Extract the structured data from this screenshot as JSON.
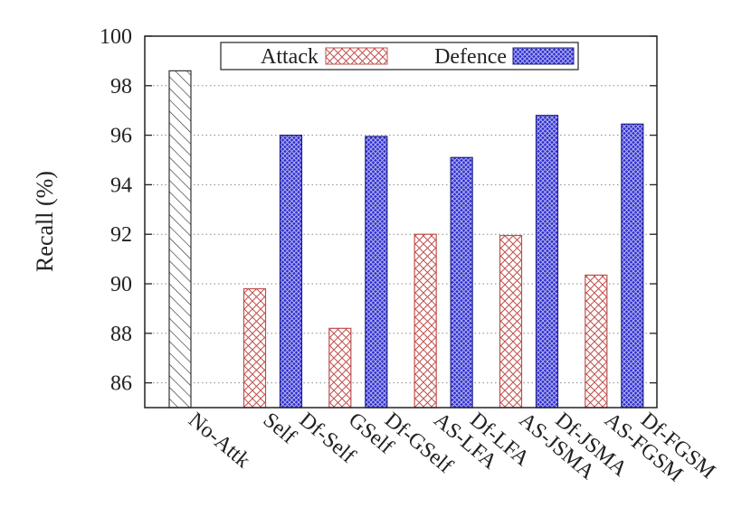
{
  "chart_data": {
    "type": "bar",
    "title": "",
    "xlabel": "",
    "ylabel": "Recall (%)",
    "ylim": [
      85,
      100
    ],
    "yticks": [
      86,
      88,
      90,
      92,
      94,
      96,
      98,
      100
    ],
    "grid": true,
    "legend_position": "top",
    "series": [
      {
        "name": "Attack",
        "key": "attack",
        "color": "#c0504d"
      },
      {
        "name": "Defence",
        "key": "defence",
        "color": "#2f2fc0"
      }
    ],
    "bars": [
      {
        "label": "No-Attk",
        "value": 98.6,
        "series": "baseline",
        "group": 0,
        "slot": 0
      },
      {
        "label": "Self",
        "value": 89.8,
        "series": "attack",
        "group": 1,
        "slot": 0
      },
      {
        "label": "Df-Self",
        "value": 96.0,
        "series": "defence",
        "group": 1,
        "slot": 1
      },
      {
        "label": "GSelf",
        "value": 88.2,
        "series": "attack",
        "group": 2,
        "slot": 0
      },
      {
        "label": "Df-GSelf",
        "value": 95.95,
        "series": "defence",
        "group": 2,
        "slot": 1
      },
      {
        "label": "AS-LFA",
        "value": 92.0,
        "series": "attack",
        "group": 3,
        "slot": 0
      },
      {
        "label": "Df-LFA",
        "value": 95.1,
        "series": "defence",
        "group": 3,
        "slot": 1
      },
      {
        "label": "AS-JSMA",
        "value": 91.95,
        "series": "attack",
        "group": 4,
        "slot": 0
      },
      {
        "label": "Df-JSMA",
        "value": 96.8,
        "series": "defence",
        "group": 4,
        "slot": 1
      },
      {
        "label": "AS-FGSM",
        "value": 90.35,
        "series": "attack",
        "group": 5,
        "slot": 0
      },
      {
        "label": "Df-FGSM",
        "value": 96.45,
        "series": "defence",
        "group": 5,
        "slot": 1
      }
    ]
  }
}
